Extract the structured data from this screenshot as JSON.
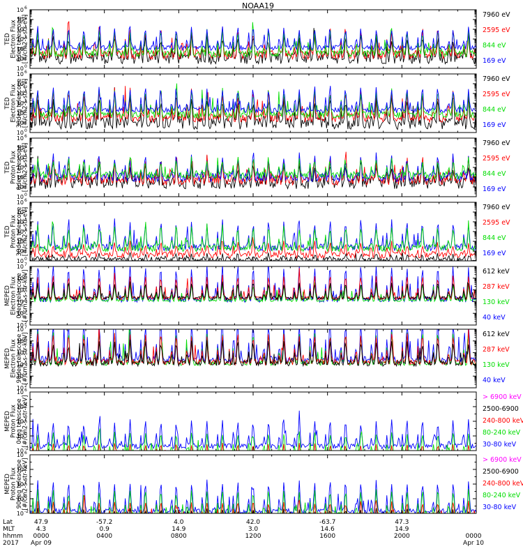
{
  "title": "NOAA19",
  "colors": {
    "black": "#000000",
    "red": "#ff0000",
    "green": "#00dd00",
    "blue": "#0000ff",
    "magenta": "#ff00ff"
  },
  "chart_data": [
    {
      "type": "line",
      "ylabel": [
        "TED",
        "Electron Flux",
        "0deg telescope",
        "[#/cm2-s-str-eV]"
      ],
      "yscale": "log",
      "ylim": [
        1,
        1000000
      ],
      "yticks": [
        "10^0",
        "10^1",
        "10^2",
        "10^3",
        "10^4",
        "10^5",
        "10^6"
      ],
      "legend": [
        {
          "label": "7960 eV",
          "color": "black"
        },
        {
          "label": "2595 eV",
          "color": "red"
        },
        {
          "label": "844 eV",
          "color": "green"
        },
        {
          "label": "169 eV",
          "color": "blue"
        }
      ],
      "series": [
        {
          "name": "7960 eV",
          "color": "black",
          "base": 1.0,
          "amp": 2.3,
          "noise": 0.55
        },
        {
          "name": "2595 eV",
          "color": "red",
          "base": 1.4,
          "amp": 2.6,
          "noise": 0.45
        },
        {
          "name": "844 eV",
          "color": "green",
          "base": 1.5,
          "amp": 2.3,
          "noise": 0.35
        },
        {
          "name": "169 eV",
          "color": "blue",
          "base": 2.1,
          "amp": 2.0,
          "noise": 0.25
        }
      ]
    },
    {
      "type": "line",
      "ylabel": [
        "TED",
        "Electron Flux",
        "30deg telescope",
        "[#/cm2-s-str-eV]"
      ],
      "yscale": "log",
      "ylim": [
        1,
        1000000
      ],
      "yticks": [
        "10^0",
        "10^1",
        "10^2",
        "10^3",
        "10^4",
        "10^5",
        "10^6"
      ],
      "legend": [
        {
          "label": "7960 eV",
          "color": "black"
        },
        {
          "label": "2595 eV",
          "color": "red"
        },
        {
          "label": "844 eV",
          "color": "green"
        },
        {
          "label": "169 eV",
          "color": "blue"
        }
      ],
      "series": [
        {
          "name": "7960 eV",
          "color": "black",
          "base": 0.9,
          "amp": 2.6,
          "noise": 0.6
        },
        {
          "name": "2595 eV",
          "color": "red",
          "base": 1.5,
          "amp": 2.7,
          "noise": 0.45
        },
        {
          "name": "844 eV",
          "color": "green",
          "base": 1.8,
          "amp": 2.5,
          "noise": 0.35
        },
        {
          "name": "169 eV",
          "color": "blue",
          "base": 2.3,
          "amp": 2.2,
          "noise": 0.3
        }
      ]
    },
    {
      "type": "line",
      "ylabel": [
        "TED",
        "Proton Flux",
        "0deg telescope",
        "[#/cm2-s-str-eV]"
      ],
      "yscale": "log",
      "ylim": [
        1,
        1000000
      ],
      "yticks": [
        "10^0",
        "10^1",
        "10^2",
        "10^3",
        "10^4",
        "10^5",
        "10^6"
      ],
      "legend": [
        {
          "label": "7960 eV",
          "color": "black"
        },
        {
          "label": "2595 eV",
          "color": "red"
        },
        {
          "label": "844 eV",
          "color": "green"
        },
        {
          "label": "169 eV",
          "color": "blue"
        }
      ],
      "series": [
        {
          "name": "7960 eV",
          "color": "black",
          "base": 1.4,
          "amp": 2.0,
          "noise": 0.6
        },
        {
          "name": "2595 eV",
          "color": "red",
          "base": 1.7,
          "amp": 2.1,
          "noise": 0.5
        },
        {
          "name": "169 eV",
          "color": "blue",
          "base": 2.0,
          "amp": 2.1,
          "noise": 0.45
        },
        {
          "name": "844 eV",
          "color": "green",
          "base": 2.2,
          "amp": 1.6,
          "noise": 0.4
        }
      ]
    },
    {
      "type": "line",
      "ylabel": [
        "TED",
        "Proton Flux",
        "30deg telescope",
        "[#/cm2-s-str-eV]"
      ],
      "yscale": "log",
      "ylim": [
        1,
        1000000
      ],
      "yticks": [
        "10^0",
        "10^1",
        "10^2",
        "10^3",
        "10^4",
        "10^5",
        "10^6"
      ],
      "legend": [
        {
          "label": "7960 eV",
          "color": "black"
        },
        {
          "label": "2595 eV",
          "color": "red"
        },
        {
          "label": "844 eV",
          "color": "green"
        },
        {
          "label": "169 eV",
          "color": "blue"
        }
      ],
      "series": [
        {
          "name": "7960 eV",
          "color": "black",
          "base": 0.1,
          "amp": 0.5,
          "noise": 0.3
        },
        {
          "name": "2595 eV",
          "color": "red",
          "base": 0.6,
          "amp": 1.2,
          "noise": 0.3
        },
        {
          "name": "169 eV",
          "color": "blue",
          "base": 1.4,
          "amp": 2.6,
          "noise": 0.35
        },
        {
          "name": "844 eV",
          "color": "green",
          "base": 1.3,
          "amp": 2.2,
          "noise": 0.35
        }
      ]
    },
    {
      "type": "line",
      "ylabel": [
        "MEPED",
        "Electron Flux",
        "0deg telescope",
        "[#/cm2-s-str-keV]"
      ],
      "yscale": "log",
      "ylim": [
        100,
        10000000
      ],
      "yticks": [
        "10^2",
        "10^3",
        "10^4",
        "10^5",
        "10^6",
        "10^7"
      ],
      "legend": [
        {
          "label": "612 keV",
          "color": "black"
        },
        {
          "label": "287 keV",
          "color": "red"
        },
        {
          "label": "130 keV",
          "color": "green"
        },
        {
          "label": "40 keV",
          "color": "blue"
        }
      ],
      "series": [
        {
          "name": "40 keV",
          "color": "blue",
          "base": 2.2,
          "amp": 2.8,
          "noise": 0.25
        },
        {
          "name": "130 keV",
          "color": "green",
          "base": 2.1,
          "amp": 1.4,
          "noise": 0.1
        },
        {
          "name": "287 keV",
          "color": "red",
          "base": 2.3,
          "amp": 1.9,
          "noise": 0.15
        },
        {
          "name": "612 keV",
          "color": "black",
          "base": 2.3,
          "amp": 1.3,
          "noise": 0.15
        }
      ]
    },
    {
      "type": "line",
      "ylabel": [
        "MEPED",
        "Electron Flux",
        "90deg telescope",
        "[#/cm2-s-str-keV]"
      ],
      "yscale": "log",
      "ylim": [
        100,
        10000000
      ],
      "yticks": [
        "10^2",
        "10^3",
        "10^4",
        "10^5",
        "10^6",
        "10^7"
      ],
      "legend": [
        {
          "label": "612 keV",
          "color": "black"
        },
        {
          "label": "287 keV",
          "color": "red"
        },
        {
          "label": "130 keV",
          "color": "green"
        },
        {
          "label": "40 keV",
          "color": "blue"
        }
      ],
      "series": [
        {
          "name": "40 keV",
          "color": "blue",
          "base": 2.4,
          "amp": 3.2,
          "noise": 0.3
        },
        {
          "name": "130 keV",
          "color": "green",
          "base": 2.1,
          "amp": 2.6,
          "noise": 0.2
        },
        {
          "name": "287 keV",
          "color": "red",
          "base": 2.2,
          "amp": 2.4,
          "noise": 0.25
        },
        {
          "name": "612 keV",
          "color": "black",
          "base": 2.1,
          "amp": 1.8,
          "noise": 0.25
        }
      ]
    },
    {
      "type": "line",
      "ylabel": [
        "MEPED",
        "Proton Flux",
        "0deg telescope",
        "[#/cm2-s-str-keV]"
      ],
      "yscale": "log",
      "ylim": [
        0.01,
        1000000
      ],
      "yticks": [
        "10^-2",
        "10^0",
        "10^2",
        "10^4",
        "10^6"
      ],
      "legend": [
        {
          "label": "> 6900 keV",
          "color": "magenta"
        },
        {
          "label": "2500-6900",
          "color": "black"
        },
        {
          "label": "240-800 keV",
          "color": "red"
        },
        {
          "label": "80-240 keV",
          "color": "green"
        },
        {
          "label": "30-80 keV",
          "color": "blue"
        }
      ],
      "series": [
        {
          "name": "30-80 keV",
          "color": "blue",
          "base": 0.6,
          "amp": 3.4,
          "noise": 0.35
        },
        {
          "name": "80-240 keV",
          "color": "green",
          "base": -0.4,
          "amp": 2.8,
          "noise": 0.25
        },
        {
          "name": "240-800 keV",
          "color": "red",
          "base": -1.3,
          "amp": 2.2,
          "noise": 0.2
        },
        {
          "name": "> 6900 keV",
          "color": "magenta",
          "base": -1.5,
          "amp": 0.8,
          "noise": 0.2
        },
        {
          "name": "2500-6900",
          "color": "black",
          "base": -1.6,
          "amp": 1.0,
          "noise": 0.2
        }
      ]
    },
    {
      "type": "line",
      "ylabel": [
        "MEPED",
        "Proton Flux",
        "90deg telescope",
        "[#/cm2-s-str-keV]"
      ],
      "yscale": "log",
      "ylim": [
        0.01,
        1000000
      ],
      "yticks": [
        "10^-2",
        "10^0",
        "10^2",
        "10^4",
        "10^6"
      ],
      "legend": [
        {
          "label": "> 6900 keV",
          "color": "magenta"
        },
        {
          "label": "2500-6900",
          "color": "black"
        },
        {
          "label": "240-800 keV",
          "color": "red"
        },
        {
          "label": "80-240 keV",
          "color": "green"
        },
        {
          "label": "30-80 keV",
          "color": "blue"
        }
      ],
      "series": [
        {
          "name": "30-80 keV",
          "color": "blue",
          "base": 0.3,
          "amp": 4.0,
          "noise": 0.35
        },
        {
          "name": "80-240 keV",
          "color": "green",
          "base": -0.2,
          "amp": 3.3,
          "noise": 0.3
        },
        {
          "name": "240-800 keV",
          "color": "red",
          "base": -0.8,
          "amp": 2.4,
          "noise": 0.25
        },
        {
          "name": "2500-6900",
          "color": "black",
          "base": -1.2,
          "amp": 1.7,
          "noise": 0.25
        },
        {
          "name": "> 6900 keV",
          "color": "magenta",
          "base": -1.6,
          "amp": 0.9,
          "noise": 0.2
        }
      ]
    }
  ],
  "xaxis": {
    "row_labels": [
      "Lat",
      "MLT",
      "hhmm",
      "2017"
    ],
    "ticks": [
      {
        "lat": "47.9",
        "mlt": "4.3",
        "hhmm": "0000",
        "date": "Apr 09"
      },
      {
        "lat": "-57.2",
        "mlt": "0.9",
        "hhmm": "0400",
        "date": ""
      },
      {
        "lat": "4.0",
        "mlt": "14.9",
        "hhmm": "0800",
        "date": ""
      },
      {
        "lat": "42.0",
        "mlt": "3.0",
        "hhmm": "1200",
        "date": ""
      },
      {
        "lat": "-63.7",
        "mlt": "14.6",
        "hhmm": "1600",
        "date": ""
      },
      {
        "lat": "47.3",
        "mlt": "14.9",
        "hhmm": "2000",
        "date": ""
      },
      {
        "lat": "",
        "mlt": "",
        "hhmm": "0000",
        "date": "Apr 10"
      }
    ]
  }
}
